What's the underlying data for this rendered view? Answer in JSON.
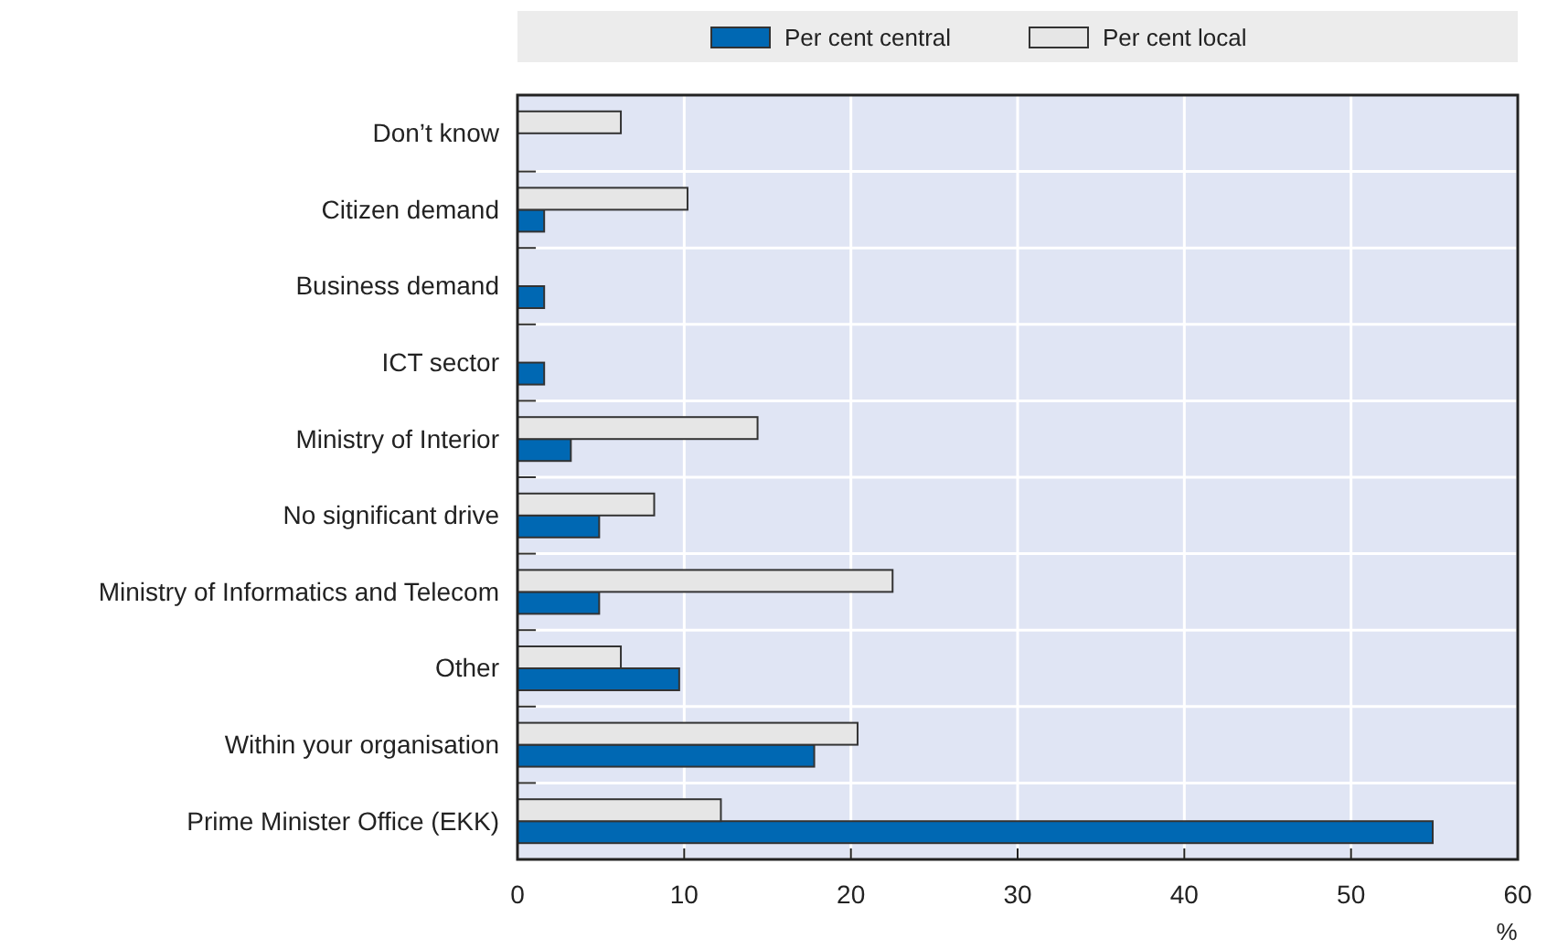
{
  "chart_data": {
    "type": "bar",
    "orientation": "horizontal",
    "xlabel": "%",
    "categories": [
      "Don’t know",
      "Citizen demand",
      "Business demand",
      "ICT sector",
      "Ministry of Interior",
      "No significant drive",
      "Ministry of Informatics and Telecom",
      "Other",
      "Within your organisation",
      "Prime Minister Office (EKK)"
    ],
    "series": [
      {
        "name": "Per cent central",
        "color": "#0068b3",
        "values": [
          null,
          1.6,
          1.6,
          1.6,
          3.2,
          4.9,
          4.9,
          9.7,
          17.8,
          54.9
        ]
      },
      {
        "name": "Per cent local",
        "color": "#e6e6e6",
        "values": [
          6.2,
          10.2,
          null,
          null,
          14.4,
          8.2,
          22.5,
          6.2,
          20.4,
          12.2
        ]
      }
    ],
    "xlim": [
      0,
      60
    ],
    "xticks": [
      0,
      10,
      20,
      30,
      40,
      50,
      60
    ],
    "grid": true,
    "legend": "top"
  }
}
